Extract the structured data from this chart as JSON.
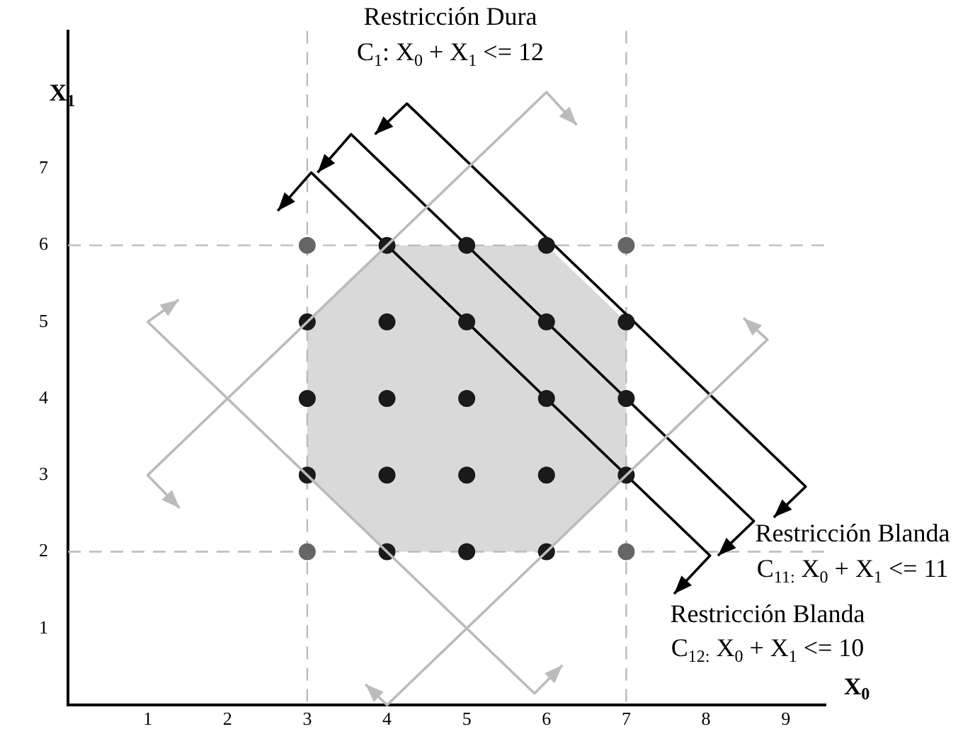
{
  "chart_data": {
    "type": "scatter",
    "xlabel": "X$_{0}$",
    "ylabel": "X$_{1}$",
    "xlim": [
      0,
      9.5
    ],
    "ylim": [
      0,
      8.8
    ],
    "xticks": [
      1,
      2,
      3,
      4,
      5,
      6,
      7,
      8,
      9
    ],
    "yticks": [
      1,
      2,
      3,
      4,
      5,
      6,
      7
    ],
    "grid": false,
    "legend": false,
    "series": [
      {
        "type": "area",
        "color": "#d9d9d9",
        "x": [
          3,
          4,
          6,
          7,
          7,
          6,
          4,
          3,
          3
        ],
        "values": [
          3,
          2,
          2,
          3,
          5,
          6,
          6,
          5,
          3
        ]
      },
      {
        "type": "line",
        "color": "#000000",
        "x": [
          3.85,
          4.25,
          9.25,
          8.85
        ],
        "values": [
          7.45,
          7.85,
          2.85,
          2.45
        ]
      },
      {
        "type": "line",
        "color": "#000000",
        "x": [
          3.13,
          3.55,
          8.6,
          8.15
        ],
        "values": [
          6.95,
          7.45,
          2.4,
          1.95
        ]
      },
      {
        "type": "line",
        "color": "#000000",
        "x": [
          2.63,
          3.05,
          8.05,
          7.6
        ],
        "values": [
          6.45,
          6.95,
          1.95,
          1.45
        ]
      },
      {
        "type": "scatter",
        "marker": "circle",
        "color": "#1a1a1a",
        "x": [
          4,
          5,
          6,
          3,
          4,
          5,
          6,
          7,
          3,
          4,
          5,
          6,
          7,
          3,
          4,
          5,
          6,
          7,
          4,
          5,
          6
        ],
        "values": [
          2,
          2,
          2,
          3,
          3,
          3,
          3,
          3,
          4,
          4,
          4,
          4,
          4,
          5,
          5,
          5,
          5,
          5,
          6,
          6,
          6
        ]
      },
      {
        "type": "scatter",
        "marker": "circle",
        "color": "#666666",
        "x": [
          3,
          7,
          3,
          7
        ],
        "values": [
          2,
          2,
          6,
          6
        ]
      }
    ],
    "ref_lines": [
      {
        "axis": "x",
        "value": 3,
        "color": "#bbbbbb",
        "line_style": "dashed"
      },
      {
        "axis": "x",
        "value": 7,
        "color": "#bbbbbb",
        "line_style": "dashed"
      },
      {
        "axis": "y",
        "value": 2,
        "color": "#bbbbbb",
        "line_style": "dashed"
      },
      {
        "axis": "y",
        "value": 6,
        "color": "#bbbbbb",
        "line_style": "dashed"
      }
    ],
    "annotations": [
      "Restricción Dura",
      "C$_{1}$: X$_{0}$ + X$_{1}$ <= 12",
      "Restricción Blanda",
      "C$_{11:}$ X$_{0}$ + X$_{1}$ <= 11",
      "Restricción Blanda",
      "C$_{12:}$ X$_{0}$ + X$_{1}$ <= 10"
    ]
  }
}
